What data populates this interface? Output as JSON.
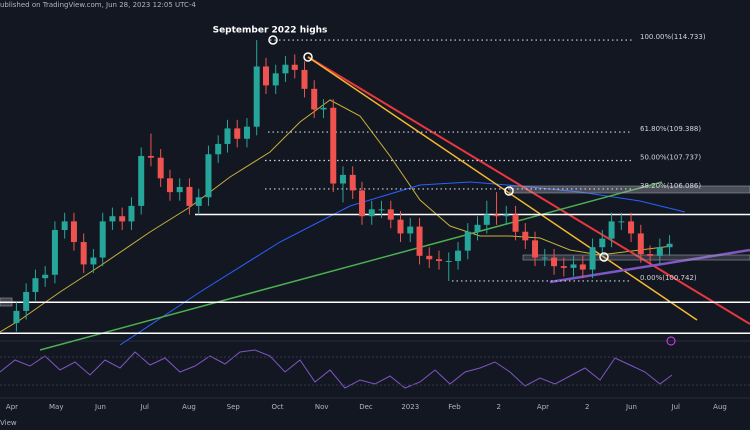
{
  "header": "ublished on TradingView.com, Jun 28, 2023 12:05 UTC-4",
  "footer": "View",
  "chart_data": {
    "type": "candlestick",
    "annotation": "September 2022 highs",
    "x": [
      0.1,
      0.32,
      0.53,
      0.75,
      0.97,
      1.19,
      1.4,
      1.62,
      1.84,
      2.05,
      2.27,
      2.49,
      2.7,
      2.92,
      3.14,
      3.36,
      3.57,
      3.79,
      4.01,
      4.22,
      4.44,
      4.66,
      4.87,
      5.09,
      5.31,
      5.53,
      5.74,
      5.96,
      6.18,
      6.39,
      6.61,
      6.83,
      7.04,
      7.26,
      7.48,
      7.7,
      7.91,
      8.13,
      8.35,
      8.56,
      8.78,
      9.0,
      9.21,
      9.43,
      9.65,
      9.87,
      10.08,
      10.3,
      10.52,
      10.73,
      10.95,
      11.17,
      11.38,
      11.6,
      11.82,
      12.04,
      12.25,
      12.47,
      12.69,
      12.9,
      13.12,
      13.34,
      13.55,
      13.77,
      13.99,
      14.21,
      14.42,
      14.64,
      14.86
    ],
    "open": [
      98.3,
      99.0,
      100.1,
      100.9,
      101.1,
      103.7,
      104.2,
      103.0,
      101.7,
      102.1,
      104.2,
      104.5,
      104.2,
      105.1,
      108.0,
      107.9,
      106.7,
      105.9,
      106.2,
      105.1,
      105.6,
      108.1,
      108.7,
      109.6,
      109.0,
      109.7,
      113.2,
      112.1,
      112.8,
      113.3,
      113.0,
      111.9,
      110.7,
      110.8,
      106.4,
      106.9,
      106.0,
      104.5,
      104.9,
      104.9,
      104.3,
      103.5,
      103.9,
      102.2,
      102.0,
      101.9,
      101.9,
      102.5,
      103.6,
      104.0,
      104.6,
      104.5,
      104.6,
      103.6,
      103.1,
      102.1,
      102.1,
      101.6,
      101.5,
      101.7,
      101.4,
      102.7,
      103.2,
      104.2,
      104.2,
      103.5,
      102.3,
      102.2,
      102.7
    ],
    "high": [
      99.5,
      100.6,
      101.4,
      101.6,
      104.2,
      104.7,
      104.7,
      103.5,
      102.6,
      104.7,
      105.0,
      105.0,
      105.6,
      108.5,
      109.3,
      108.4,
      107.2,
      106.7,
      106.7,
      106.1,
      108.6,
      109.2,
      110.1,
      110.1,
      110.2,
      114.73,
      113.7,
      113.3,
      113.8,
      113.9,
      113.5,
      112.4,
      111.3,
      111.3,
      107.4,
      107.4,
      106.5,
      105.4,
      105.4,
      105.4,
      104.8,
      104.4,
      104.4,
      102.7,
      102.5,
      102.4,
      103.0,
      104.1,
      104.5,
      105.4,
      105.9,
      105.1,
      105.1,
      104.1,
      103.6,
      102.6,
      102.6,
      102.1,
      102.2,
      102.2,
      103.2,
      103.7,
      104.7,
      104.7,
      104.7,
      104.0,
      102.8,
      103.2,
      103.4
    ],
    "low": [
      97.8,
      98.5,
      99.6,
      100.4,
      100.6,
      103.2,
      102.5,
      101.2,
      101.2,
      101.6,
      103.7,
      103.7,
      103.7,
      104.6,
      107.4,
      106.2,
      105.4,
      105.4,
      104.6,
      104.6,
      105.1,
      107.6,
      108.2,
      108.5,
      108.5,
      109.2,
      111.6,
      111.6,
      112.3,
      112.5,
      111.4,
      110.2,
      110.2,
      105.9,
      105.3,
      105.5,
      104.0,
      104.0,
      104.4,
      103.8,
      103.0,
      103.0,
      101.7,
      101.5,
      101.4,
      100.74,
      101.4,
      102.0,
      103.1,
      103.5,
      104.0,
      104.0,
      103.1,
      102.6,
      101.6,
      101.6,
      101.1,
      101.0,
      101.0,
      100.9,
      100.9,
      102.2,
      102.7,
      103.7,
      103.0,
      101.8,
      101.7,
      101.7,
      102.2
    ],
    "close": [
      99.0,
      100.1,
      100.9,
      101.1,
      103.7,
      104.2,
      103.0,
      101.7,
      102.1,
      104.2,
      104.5,
      104.2,
      105.1,
      108.0,
      107.9,
      106.7,
      105.9,
      106.2,
      105.1,
      105.6,
      108.1,
      108.7,
      109.6,
      109.0,
      109.7,
      113.2,
      112.1,
      112.8,
      113.3,
      113.0,
      111.9,
      110.7,
      110.8,
      106.4,
      106.9,
      106.0,
      104.5,
      104.9,
      104.9,
      104.3,
      103.5,
      103.9,
      102.2,
      102.0,
      101.9,
      101.9,
      102.5,
      103.6,
      104.0,
      104.6,
      104.5,
      104.6,
      103.6,
      103.1,
      102.1,
      102.1,
      101.6,
      101.5,
      101.7,
      101.4,
      102.7,
      103.2,
      104.2,
      104.2,
      103.5,
      102.3,
      102.2,
      102.7,
      102.9
    ],
    "up_color": "#26a69a",
    "down_color": "#ef5350",
    "xlim": [
      -0.271,
      16.678
    ],
    "ylim": [
      97.31,
      117.06
    ],
    "xticks": [
      {
        "value": 0,
        "label": "Apr"
      },
      {
        "value": 1,
        "label": "May"
      },
      {
        "value": 2,
        "label": "Jun"
      },
      {
        "value": 3,
        "label": "Jul"
      },
      {
        "value": 4,
        "label": "Aug"
      },
      {
        "value": 5,
        "label": "Sep"
      },
      {
        "value": 6,
        "label": "Oct"
      },
      {
        "value": 7,
        "label": "Nov"
      },
      {
        "value": 8,
        "label": "Dec"
      },
      {
        "value": 9,
        "label": "2023"
      },
      {
        "value": 10,
        "label": "Feb"
      },
      {
        "value": 11,
        "label": "2"
      },
      {
        "value": 12,
        "label": "Apr"
      },
      {
        "value": 13,
        "label": "2"
      },
      {
        "value": 14,
        "label": "Jun"
      },
      {
        "value": 15,
        "label": "Jul"
      },
      {
        "value": 16,
        "label": "Aug"
      }
    ],
    "fib_levels": [
      {
        "value": 114.733,
        "label": "100.00%(114.733)"
      },
      {
        "value": 109.388,
        "label": "61.80%(109.388)"
      },
      {
        "value": 107.737,
        "label": "50.00%(107.737)"
      },
      {
        "value": 106.086,
        "label": "38.20%(106.086)"
      },
      {
        "value": 100.742,
        "label": "0.00%(100.742)"
      }
    ],
    "levels": [
      104.6,
      99.5,
      97.7
    ]
  }
}
